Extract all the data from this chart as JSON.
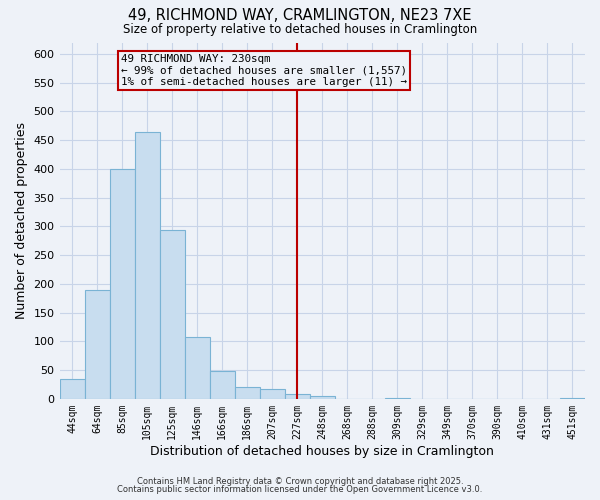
{
  "title": "49, RICHMOND WAY, CRAMLINGTON, NE23 7XE",
  "subtitle": "Size of property relative to detached houses in Cramlington",
  "xlabel": "Distribution of detached houses by size in Cramlington",
  "ylabel": "Number of detached properties",
  "bar_labels": [
    "44sqm",
    "64sqm",
    "85sqm",
    "105sqm",
    "125sqm",
    "146sqm",
    "166sqm",
    "186sqm",
    "207sqm",
    "227sqm",
    "248sqm",
    "268sqm",
    "288sqm",
    "309sqm",
    "329sqm",
    "349sqm",
    "370sqm",
    "390sqm",
    "410sqm",
    "431sqm",
    "451sqm"
  ],
  "bar_heights": [
    35,
    190,
    400,
    465,
    293,
    107,
    48,
    20,
    17,
    8,
    5,
    0,
    0,
    2,
    0,
    0,
    0,
    0,
    0,
    0,
    2
  ],
  "bar_color": "#c8ddef",
  "bar_edge_color": "#7ab3d4",
  "grid_color": "#c8d4e8",
  "bg_color": "#eef2f8",
  "vline_x_index": 9,
  "vline_color": "#bb0000",
  "annotation_text": "49 RICHMOND WAY: 230sqm\n← 99% of detached houses are smaller (1,557)\n1% of semi-detached houses are larger (11) →",
  "annotation_box_edge": "#bb0000",
  "ylim": [
    0,
    620
  ],
  "yticks": [
    0,
    50,
    100,
    150,
    200,
    250,
    300,
    350,
    400,
    450,
    500,
    550,
    600
  ],
  "footer1": "Contains HM Land Registry data © Crown copyright and database right 2025.",
  "footer2": "Contains public sector information licensed under the Open Government Licence v3.0."
}
